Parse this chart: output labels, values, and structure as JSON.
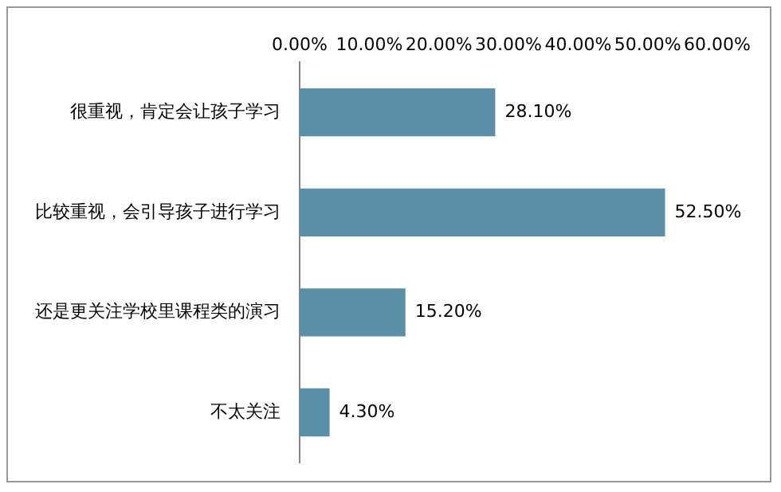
{
  "chart_data": {
    "type": "bar",
    "orientation": "horizontal",
    "categories": [
      "很重视，肯定会让孩子学习",
      "比较重视，会引导孩子进行学习",
      "还是更关注学校里课程类的演习",
      "不太关注"
    ],
    "values": [
      28.1,
      52.5,
      15.2,
      4.3
    ],
    "color": "#5b8fa8",
    "value_labels": [
      "28.10%",
      "52.50%",
      "15.20%",
      "4.30%"
    ],
    "xlim": [
      0,
      60
    ],
    "xticks": [
      {
        "value": 0,
        "label": "0.00%"
      },
      {
        "value": 10,
        "label": "10.00%"
      },
      {
        "value": 20,
        "label": "20.00%"
      },
      {
        "value": 30,
        "label": "30.00%"
      },
      {
        "value": 40,
        "label": "40.00%"
      },
      {
        "value": 50,
        "label": "50.00%"
      },
      {
        "value": 60,
        "label": "60.00%"
      }
    ],
    "grid": false,
    "legend": false
  }
}
